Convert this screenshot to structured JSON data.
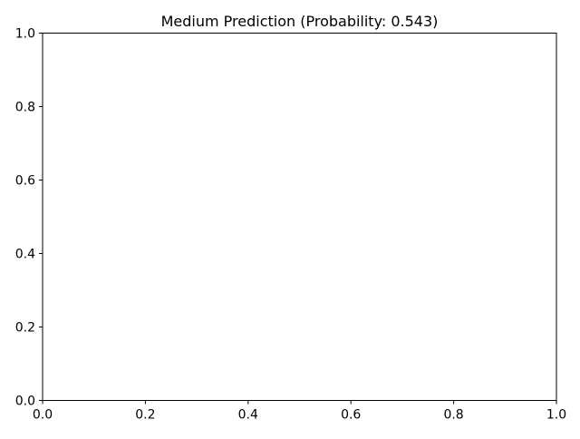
{
  "chart_data": {
    "type": "line",
    "title": "Medium Prediction (Probability: 0.543)",
    "xlabel": "",
    "ylabel": "",
    "xlim": [
      0.0,
      1.0
    ],
    "ylim": [
      0.0,
      1.0
    ],
    "x_ticks": [
      "0.0",
      "0.2",
      "0.4",
      "0.6",
      "0.8",
      "1.0"
    ],
    "y_ticks": [
      "0.0",
      "0.2",
      "0.4",
      "0.6",
      "0.8",
      "1.0"
    ],
    "series": [],
    "grid": false,
    "legend": "none"
  }
}
